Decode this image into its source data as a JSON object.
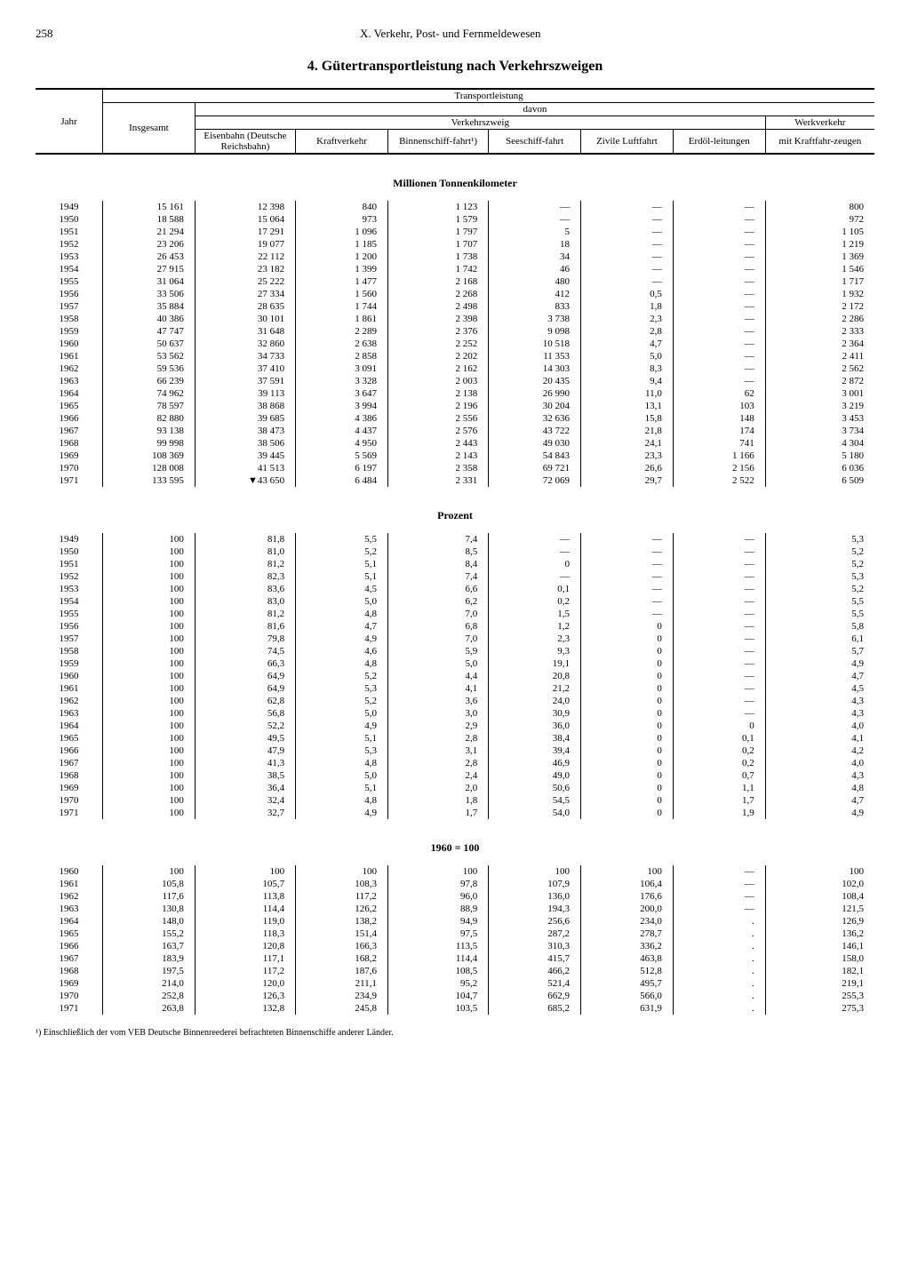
{
  "page_number": "258",
  "chapter": "X. Verkehr, Post- und Fernmeldewesen",
  "title": "4. Gütertransportleistung nach Verkehrszweigen",
  "header": {
    "jahr": "Jahr",
    "insgesamt": "Insgesamt",
    "transportleistung": "Transportleistung",
    "davon": "davon",
    "verkehrszweig": "Verkehrszweig",
    "werkverkehr": "Werkverkehr",
    "cols": [
      "Eisenbahn (Deutsche Reichsbahn)",
      "Kraftverkehr",
      "Binnenschiff-fahrt¹)",
      "Seeschiff-fahrt",
      "Zivile Luftfahrt",
      "Erdöl-leitungen",
      "mit Kraftfahr-zeugen"
    ]
  },
  "sections": [
    {
      "title": "Millionen Tonnenkilometer",
      "rows": [
        [
          "1949",
          "15 161",
          "12 398",
          "840",
          "1 123",
          "—",
          "—",
          "—",
          "800"
        ],
        [
          "1950",
          "18 588",
          "15 064",
          "973",
          "1 579",
          "—",
          "—",
          "—",
          "972"
        ],
        [
          "1951",
          "21 294",
          "17 291",
          "1 096",
          "1 797",
          "5",
          "—",
          "—",
          "1 105"
        ],
        [
          "1952",
          "23 206",
          "19 077",
          "1 185",
          "1 707",
          "18",
          "—",
          "—",
          "1 219"
        ],
        [
          "1953",
          "26 453",
          "22 112",
          "1 200",
          "1 738",
          "34",
          "—",
          "—",
          "1 369"
        ],
        [
          "1954",
          "27 915",
          "23 182",
          "1 399",
          "1 742",
          "46",
          "—",
          "—",
          "1 546"
        ],
        [
          "1955",
          "31 064",
          "25 222",
          "1 477",
          "2 168",
          "480",
          "—",
          "—",
          "1 717"
        ],
        [
          "1956",
          "33 506",
          "27 334",
          "1 560",
          "2 268",
          "412",
          "0,5",
          "—",
          "1 932"
        ],
        [
          "1957",
          "35 884",
          "28 635",
          "1 744",
          "2 498",
          "833",
          "1,8",
          "—",
          "2 172"
        ],
        [
          "1958",
          "40 386",
          "30 101",
          "1 861",
          "2 398",
          "3 738",
          "2,3",
          "—",
          "2 286"
        ],
        [
          "1959",
          "47 747",
          "31 648",
          "2 289",
          "2 376",
          "9 098",
          "2,8",
          "—",
          "2 333"
        ],
        [
          "1960",
          "50 637",
          "32 860",
          "2 638",
          "2 252",
          "10 518",
          "4,7",
          "—",
          "2 364"
        ],
        [
          "1961",
          "53 562",
          "34 733",
          "2 858",
          "2 202",
          "11 353",
          "5,0",
          "—",
          "2 411"
        ],
        [
          "1962",
          "59 536",
          "37 410",
          "3 091",
          "2 162",
          "14 303",
          "8,3",
          "—",
          "2 562"
        ],
        [
          "1963",
          "66 239",
          "37 591",
          "3 328",
          "2 003",
          "20 435",
          "9,4",
          "—",
          "2 872"
        ],
        [
          "1964",
          "74 962",
          "39 113",
          "3 647",
          "2 138",
          "26 990",
          "11,0",
          "62",
          "3 001"
        ],
        [
          "1965",
          "78 597",
          "38 868",
          "3 994",
          "2 196",
          "30 204",
          "13,1",
          "103",
          "3 219"
        ],
        [
          "1966",
          "82 880",
          "39 685",
          "4 386",
          "2 556",
          "32 636",
          "15,8",
          "148",
          "3 453"
        ],
        [
          "1967",
          "93 138",
          "38 473",
          "4 437",
          "2 576",
          "43 722",
          "21,8",
          "174",
          "3 734"
        ],
        [
          "1968",
          "99 998",
          "38 506",
          "4 950",
          "2 443",
          "49 030",
          "24,1",
          "741",
          "4 304"
        ],
        [
          "1969",
          "108 369",
          "39 445",
          "5 569",
          "2 143",
          "54 843",
          "23,3",
          "1 166",
          "5 180"
        ],
        [
          "1970",
          "128 008",
          "41 513",
          "6 197",
          "2 358",
          "69 721",
          "26,6",
          "2 156",
          "6 036"
        ],
        [
          "1971",
          "133 595",
          "▼43 650",
          "6 484",
          "2 331",
          "72 069",
          "29,7",
          "2 522",
          "6 509"
        ]
      ]
    },
    {
      "title": "Prozent",
      "rows": [
        [
          "1949",
          "100",
          "81,8",
          "5,5",
          "7,4",
          "—",
          "—",
          "—",
          "5,3"
        ],
        [
          "1950",
          "100",
          "81,0",
          "5,2",
          "8,5",
          "—",
          "—",
          "—",
          "5,2"
        ],
        [
          "1951",
          "100",
          "81,2",
          "5,1",
          "8,4",
          "0",
          "—",
          "—",
          "5,2"
        ],
        [
          "1952",
          "100",
          "82,3",
          "5,1",
          "7,4",
          "—",
          "—",
          "—",
          "5,3"
        ],
        [
          "1953",
          "100",
          "83,6",
          "4,5",
          "6,6",
          "0,1",
          "—",
          "—",
          "5,2"
        ],
        [
          "1954",
          "100",
          "83,0",
          "5,0",
          "6,2",
          "0,2",
          "—",
          "—",
          "5,5"
        ],
        [
          "1955",
          "100",
          "81,2",
          "4,8",
          "7,0",
          "1,5",
          "—",
          "—",
          "5,5"
        ],
        [
          "1956",
          "100",
          "81,6",
          "4,7",
          "6,8",
          "1,2",
          "0",
          "—",
          "5,8"
        ],
        [
          "1957",
          "100",
          "79,8",
          "4,9",
          "7,0",
          "2,3",
          "0",
          "—",
          "6,1"
        ],
        [
          "1958",
          "100",
          "74,5",
          "4,6",
          "5,9",
          "9,3",
          "0",
          "—",
          "5,7"
        ],
        [
          "1959",
          "100",
          "66,3",
          "4,8",
          "5,0",
          "19,1",
          "0",
          "—",
          "4,9"
        ],
        [
          "1960",
          "100",
          "64,9",
          "5,2",
          "4,4",
          "20,8",
          "0",
          "—",
          "4,7"
        ],
        [
          "1961",
          "100",
          "64,9",
          "5,3",
          "4,1",
          "21,2",
          "0",
          "—",
          "4,5"
        ],
        [
          "1962",
          "100",
          "62,8",
          "5,2",
          "3,6",
          "24,0",
          "0",
          "—",
          "4,3"
        ],
        [
          "1963",
          "100",
          "56,8",
          "5,0",
          "3,0",
          "30,9",
          "0",
          "—",
          "4,3"
        ],
        [
          "1964",
          "100",
          "52,2",
          "4,9",
          "2,9",
          "36,0",
          "0",
          "0",
          "4,0"
        ],
        [
          "1965",
          "100",
          "49,5",
          "5,1",
          "2,8",
          "38,4",
          "0",
          "0,1",
          "4,1"
        ],
        [
          "1966",
          "100",
          "47,9",
          "5,3",
          "3,1",
          "39,4",
          "0",
          "0,2",
          "4,2"
        ],
        [
          "1967",
          "100",
          "41,3",
          "4,8",
          "2,8",
          "46,9",
          "0",
          "0,2",
          "4,0"
        ],
        [
          "1968",
          "100",
          "38,5",
          "5,0",
          "2,4",
          "49,0",
          "0",
          "0,7",
          "4,3"
        ],
        [
          "1969",
          "100",
          "36,4",
          "5,1",
          "2,0",
          "50,6",
          "0",
          "1,1",
          "4,8"
        ],
        [
          "1970",
          "100",
          "32,4",
          "4,8",
          "1,8",
          "54,5",
          "0",
          "1,7",
          "4,7"
        ],
        [
          "1971",
          "100",
          "32,7",
          "4,9",
          "1,7",
          "54,0",
          "0",
          "1,9",
          "4,9"
        ]
      ]
    },
    {
      "title": "1960 = 100",
      "rows": [
        [
          "1960",
          "100",
          "100",
          "100",
          "100",
          "100",
          "100",
          "—",
          "100"
        ],
        [
          "1961",
          "105,8",
          "105,7",
          "108,3",
          "97,8",
          "107,9",
          "106,4",
          "—",
          "102,0"
        ],
        [
          "1962",
          "117,6",
          "113,8",
          "117,2",
          "96,0",
          "136,0",
          "176,6",
          "—",
          "108,4"
        ],
        [
          "1963",
          "130,8",
          "114,4",
          "126,2",
          "88,9",
          "194,3",
          "200,0",
          "—",
          "121,5"
        ],
        [
          "1964",
          "148,0",
          "119,0",
          "138,2",
          "94,9",
          "256,6",
          "234,0",
          ".",
          "126,9"
        ],
        [
          "1965",
          "155,2",
          "118,3",
          "151,4",
          "97,5",
          "287,2",
          "278,7",
          ".",
          "136,2"
        ],
        [
          "1966",
          "163,7",
          "120,8",
          "166,3",
          "113,5",
          "310,3",
          "336,2",
          ".",
          "146,1"
        ],
        [
          "1967",
          "183,9",
          "117,1",
          "168,2",
          "114,4",
          "415,7",
          "463,8",
          ".",
          "158,0"
        ],
        [
          "1968",
          "197,5",
          "117,2",
          "187,6",
          "108,5",
          "466,2",
          "512,8",
          ".",
          "182,1"
        ],
        [
          "1969",
          "214,0",
          "120,0",
          "211,1",
          "95,2",
          "521,4",
          "495,7",
          ".",
          "219,1"
        ],
        [
          "1970",
          "252,8",
          "126,3",
          "234,9",
          "104,7",
          "662,9",
          "566,0",
          ".",
          "255,3"
        ],
        [
          "1971",
          "263,8",
          "132,8",
          "245,8",
          "103,5",
          "685,2",
          "631,9",
          ".",
          "275,3"
        ]
      ]
    }
  ],
  "footnote": "¹) Einschließlich der vom VEB Deutsche Binnenreederei befrachteten Binnenschiffe anderer Länder."
}
